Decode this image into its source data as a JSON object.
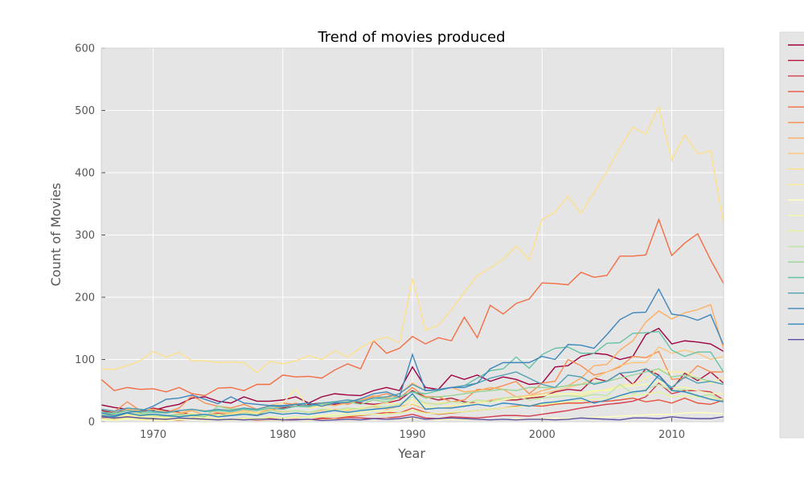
{
  "chart_data": {
    "type": "line",
    "title": "Trend of movies produced",
    "xlabel": "Year",
    "ylabel": "Count of Movies",
    "xlim": [
      1966,
      2014
    ],
    "ylim": [
      0,
      600
    ],
    "xticks": [
      1970,
      1980,
      1990,
      2000,
      2010
    ],
    "yticks": [
      0,
      100,
      200,
      300,
      400,
      500,
      600
    ],
    "grid": true,
    "background": "#e5e5e5",
    "legend_position": "right-outside",
    "x": [
      1966,
      1967,
      1968,
      1969,
      1970,
      1971,
      1972,
      1973,
      1974,
      1975,
      1976,
      1977,
      1978,
      1979,
      1980,
      1981,
      1982,
      1983,
      1984,
      1985,
      1986,
      1987,
      1988,
      1989,
      1990,
      1991,
      1992,
      1993,
      1994,
      1995,
      1996,
      1997,
      1998,
      1999,
      2000,
      2001,
      2002,
      2003,
      2004,
      2005,
      2006,
      2007,
      2008,
      2009,
      2010,
      2011,
      2012,
      2013,
      2014
    ],
    "series": [
      {
        "color": "#9e0142",
        "values": [
          27,
          23,
          20,
          18,
          18,
          24,
          28,
          38,
          40,
          33,
          30,
          40,
          33,
          33,
          35,
          40,
          30,
          40,
          45,
          43,
          42,
          50,
          55,
          50,
          88,
          55,
          52,
          75,
          68,
          75,
          65,
          72,
          68,
          60,
          62,
          88,
          90,
          105,
          110,
          108,
          100,
          105,
          140,
          150,
          125,
          130,
          128,
          125,
          113
        ]
      },
      {
        "color": "#b2183e",
        "values": [
          18,
          14,
          20,
          15,
          22,
          18,
          15,
          12,
          10,
          14,
          12,
          15,
          10,
          20,
          22,
          25,
          28,
          30,
          28,
          32,
          30,
          28,
          30,
          35,
          50,
          40,
          35,
          38,
          32,
          30,
          33,
          35,
          35,
          38,
          40,
          48,
          52,
          50,
          70,
          65,
          78,
          60,
          85,
          75,
          52,
          78,
          66,
          80,
          62
        ]
      },
      {
        "color": "#d53e4f",
        "values": [
          10,
          5,
          8,
          6,
          4,
          5,
          4,
          7,
          5,
          3,
          4,
          6,
          3,
          5,
          3,
          4,
          3,
          6,
          5,
          7,
          6,
          5,
          6,
          8,
          12,
          6,
          5,
          8,
          7,
          6,
          8,
          10,
          10,
          9,
          12,
          15,
          18,
          22,
          25,
          28,
          30,
          33,
          40,
          62,
          45,
          50,
          50,
          48,
          35
        ]
      },
      {
        "color": "#e6553f",
        "values": [
          6,
          3,
          8,
          4,
          3,
          3,
          2,
          5,
          4,
          3,
          3,
          5,
          2,
          3,
          2,
          3,
          3,
          4,
          5,
          8,
          10,
          12,
          15,
          14,
          22,
          15,
          12,
          14,
          16,
          18,
          20,
          22,
          25,
          26,
          25,
          28,
          30,
          30,
          32,
          33,
          35,
          38,
          32,
          35,
          30,
          38,
          30,
          28,
          35
        ]
      },
      {
        "color": "#f46d43",
        "values": [
          68,
          50,
          55,
          52,
          53,
          48,
          55,
          45,
          42,
          54,
          55,
          50,
          60,
          60,
          75,
          72,
          73,
          70,
          83,
          93,
          85,
          130,
          110,
          118,
          137,
          125,
          135,
          130,
          168,
          135,
          187,
          173,
          190,
          197,
          223,
          222,
          220,
          240,
          232,
          235,
          266,
          266,
          268,
          325,
          267,
          287,
          302,
          260,
          222
        ]
      },
      {
        "color": "#f88f52",
        "values": [
          20,
          16,
          32,
          18,
          20,
          15,
          22,
          42,
          30,
          25,
          22,
          28,
          20,
          26,
          30,
          28,
          25,
          30,
          32,
          28,
          35,
          40,
          45,
          38,
          55,
          40,
          40,
          32,
          35,
          52,
          52,
          58,
          65,
          45,
          62,
          65,
          100,
          90,
          75,
          80,
          88,
          105,
          103,
          113,
          68,
          70,
          90,
          80,
          80
        ]
      },
      {
        "color": "#fdae61",
        "values": [
          12,
          10,
          14,
          12,
          10,
          8,
          12,
          18,
          10,
          15,
          12,
          16,
          14,
          20,
          25,
          30,
          24,
          28,
          26,
          30,
          35,
          42,
          38,
          45,
          62,
          50,
          52,
          55,
          48,
          50,
          55,
          52,
          40,
          42,
          50,
          55,
          58,
          70,
          90,
          92,
          115,
          130,
          160,
          178,
          165,
          175,
          180,
          188,
          117
        ]
      },
      {
        "color": "#fec57a",
        "values": [
          14,
          12,
          20,
          18,
          20,
          16,
          14,
          20,
          18,
          15,
          14,
          18,
          15,
          20,
          16,
          18,
          15,
          18,
          20,
          18,
          22,
          24,
          20,
          25,
          28,
          20,
          22,
          25,
          28,
          30,
          35,
          38,
          40,
          42,
          45,
          50,
          55,
          60,
          70,
          80,
          90,
          95,
          95,
          120,
          110,
          115,
          110,
          100,
          105
        ]
      },
      {
        "color": "#fee08b",
        "values": [
          85,
          84,
          90,
          98,
          113,
          104,
          111,
          98,
          98,
          95,
          96,
          95,
          79,
          97,
          93,
          98,
          106,
          100,
          114,
          104,
          119,
          130,
          136,
          127,
          230,
          147,
          155,
          180,
          208,
          235,
          247,
          261,
          282,
          260,
          325,
          337,
          362,
          335,
          368,
          402,
          440,
          473,
          462,
          506,
          420,
          461,
          430,
          435,
          318
        ]
      },
      {
        "color": "#feee9a",
        "values": [
          10,
          8,
          12,
          10,
          8,
          6,
          10,
          14,
          8,
          10,
          12,
          16,
          14,
          25,
          30,
          52,
          22,
          25,
          18,
          20,
          22,
          26,
          30,
          28,
          35,
          28,
          30,
          32,
          30,
          34,
          32,
          35,
          38,
          40,
          42,
          45,
          45,
          42,
          48,
          52,
          58,
          60,
          70,
          85,
          80,
          80,
          70,
          62,
          72
        ]
      },
      {
        "color": "#ffffbf",
        "values": [
          3,
          2,
          4,
          3,
          2,
          2,
          3,
          4,
          2,
          3,
          2,
          4,
          3,
          3,
          2,
          3,
          2,
          3,
          4,
          3,
          3,
          4,
          5,
          4,
          6,
          4,
          3,
          4,
          3,
          4,
          3,
          4,
          5,
          4,
          5,
          6,
          5,
          6,
          7,
          8,
          9,
          10,
          11,
          12,
          12,
          14,
          15,
          14,
          13
        ]
      },
      {
        "color": "#f4f9aa",
        "values": [
          8,
          6,
          10,
          8,
          5,
          6,
          4,
          8,
          6,
          5,
          4,
          6,
          5,
          8,
          6,
          7,
          8,
          10,
          12,
          14,
          15,
          18,
          16,
          20,
          30,
          25,
          22,
          26,
          28,
          30,
          32,
          35,
          38,
          40,
          42,
          44,
          45,
          46,
          50,
          50,
          55,
          58,
          60,
          65,
          55,
          55,
          50,
          45,
          45
        ]
      },
      {
        "color": "#e6f598",
        "values": [
          5,
          4,
          6,
          5,
          4,
          3,
          5,
          6,
          4,
          5,
          4,
          6,
          5,
          7,
          6,
          8,
          7,
          8,
          9,
          10,
          11,
          12,
          12,
          14,
          18,
          14,
          13,
          15,
          16,
          18,
          20,
          22,
          24,
          26,
          28,
          30,
          32,
          34,
          36,
          38,
          40,
          42,
          44,
          48,
          40,
          42,
          40,
          38,
          36
        ]
      },
      {
        "color": "#bfe5a0",
        "values": [
          12,
          10,
          14,
          12,
          10,
          8,
          10,
          12,
          10,
          12,
          10,
          14,
          12,
          18,
          15,
          18,
          15,
          20,
          18,
          22,
          20,
          25,
          24,
          28,
          40,
          30,
          28,
          32,
          30,
          35,
          32,
          38,
          40,
          35,
          38,
          40,
          42,
          40,
          44,
          42,
          60,
          45,
          52,
          60,
          50,
          52,
          40,
          44,
          32
        ]
      },
      {
        "color": "#99d594",
        "values": [
          15,
          12,
          18,
          14,
          12,
          10,
          12,
          10,
          8,
          25,
          20,
          22,
          18,
          22,
          20,
          25,
          24,
          28,
          30,
          32,
          28,
          35,
          32,
          40,
          48,
          38,
          40,
          42,
          45,
          48,
          50,
          52,
          50,
          55,
          55,
          55,
          58,
          60,
          62,
          65,
          70,
          75,
          80,
          85,
          72,
          75,
          70,
          65,
          60
        ]
      },
      {
        "color": "#66c2a5",
        "values": [
          15,
          14,
          18,
          16,
          15,
          14,
          18,
          20,
          16,
          18,
          16,
          20,
          18,
          22,
          20,
          25,
          24,
          30,
          32,
          35,
          33,
          38,
          36,
          40,
          48,
          45,
          50,
          55,
          58,
          70,
          82,
          85,
          104,
          86,
          108,
          118,
          120,
          110,
          110,
          126,
          127,
          142,
          143,
          145,
          115,
          105,
          112,
          112,
          80
        ]
      },
      {
        "color": "#4e9fb5",
        "values": [
          20,
          17,
          22,
          20,
          17,
          15,
          18,
          20,
          17,
          20,
          18,
          22,
          20,
          25,
          24,
          28,
          26,
          30,
          32,
          35,
          32,
          38,
          40,
          45,
          60,
          50,
          52,
          55,
          58,
          62,
          70,
          75,
          80,
          70,
          60,
          55,
          75,
          72,
          60,
          65,
          78,
          80,
          85,
          70,
          55,
          72,
          62,
          65,
          60
        ]
      },
      {
        "color": "#3e86bc",
        "values": [
          14,
          10,
          15,
          17,
          25,
          36,
          38,
          43,
          36,
          29,
          40,
          30,
          28,
          26,
          26,
          28,
          30,
          25,
          30,
          31,
          37,
          45,
          48,
          40,
          108,
          50,
          51,
          55,
          55,
          62,
          85,
          95,
          95,
          95,
          105,
          100,
          124,
          123,
          118,
          140,
          164,
          175,
          176,
          213,
          173,
          170,
          163,
          172,
          123
        ]
      },
      {
        "color": "#3288bd",
        "values": [
          10,
          8,
          14,
          10,
          12,
          10,
          8,
          10,
          12,
          8,
          10,
          12,
          10,
          15,
          12,
          14,
          12,
          15,
          18,
          15,
          18,
          20,
          22,
          25,
          45,
          20,
          22,
          22,
          25,
          28,
          25,
          30,
          28,
          25,
          30,
          32,
          35,
          38,
          30,
          35,
          42,
          48,
          50,
          75,
          50,
          48,
          42,
          36,
          32
        ]
      },
      {
        "color": "#5e4fa2",
        "values": [
          8,
          6,
          8,
          6,
          5,
          4,
          6,
          5,
          4,
          3,
          4,
          3,
          4,
          4,
          3,
          3,
          4,
          2,
          3,
          4,
          3,
          5,
          4,
          5,
          8,
          4,
          5,
          6,
          5,
          4,
          3,
          4,
          3,
          4,
          4,
          3,
          4,
          6,
          5,
          4,
          3,
          6,
          6,
          5,
          8,
          6,
          5,
          5,
          8
        ]
      }
    ]
  }
}
